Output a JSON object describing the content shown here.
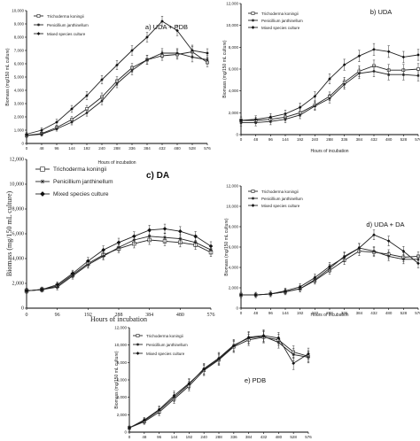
{
  "chart_data": [
    {
      "type": "line",
      "title": "a) UDA + PDB",
      "xlabel": "Hours of incubation",
      "ylabel": "Biomass (mg/150 mL culture)",
      "x_ticks": [
        "0",
        "48",
        "96",
        "144",
        "192",
        "240",
        "288",
        "336",
        "384",
        "432",
        "480",
        "528",
        "576"
      ],
      "y_ticks": [
        "0",
        "1,000",
        "2,000",
        "3,000",
        "4,000",
        "5,000",
        "6,000",
        "7,000",
        "8,000",
        "9,000",
        "10,000"
      ],
      "x": [
        0,
        48,
        96,
        144,
        192,
        240,
        288,
        336,
        384,
        432,
        480,
        528,
        576
      ],
      "ylim": [
        0,
        10000
      ],
      "legend": "top-left",
      "series": [
        {
          "name": "Trichoderma koningii",
          "marker": "square-open",
          "values": [
            600,
            750,
            1200,
            1800,
            2600,
            3500,
            4700,
            5700,
            6300,
            6600,
            6700,
            6900,
            6100
          ],
          "err": [
            150,
            150,
            180,
            220,
            260,
            300,
            320,
            320,
            330,
            340,
            360,
            420,
            320
          ]
        },
        {
          "name": "Penicillium janthinellum",
          "marker": "star",
          "values": [
            600,
            700,
            1100,
            1600,
            2300,
            3200,
            4500,
            5500,
            6300,
            6800,
            6800,
            6500,
            6300
          ],
          "err": [
            150,
            150,
            170,
            200,
            240,
            280,
            300,
            320,
            330,
            340,
            340,
            360,
            320
          ]
        },
        {
          "name": "Mixed species culture",
          "marker": "diamond-filled",
          "values": [
            700,
            1000,
            1600,
            2600,
            3600,
            4800,
            5900,
            7000,
            8000,
            9200,
            8500,
            7000,
            6800
          ],
          "err": [
            150,
            180,
            220,
            260,
            300,
            320,
            340,
            350,
            360,
            380,
            380,
            400,
            330
          ]
        }
      ]
    },
    {
      "type": "line",
      "title": "b) UDA",
      "xlabel": "Hours of incubation",
      "ylabel": "Biomass (mg/150 mL culture)",
      "x_ticks": [
        "0",
        "48",
        "96",
        "144",
        "192",
        "240",
        "288",
        "336",
        "384",
        "432",
        "480",
        "528",
        "576"
      ],
      "y_ticks": [
        "0",
        "2,000",
        "4,000",
        "6,000",
        "8,000",
        "10,000",
        "12,000"
      ],
      "x": [
        0,
        48,
        96,
        144,
        192,
        240,
        288,
        336,
        384,
        432,
        480,
        528,
        576
      ],
      "ylim": [
        0,
        12000
      ],
      "legend": "top-left",
      "series": [
        {
          "name": "Trichoderma koningii",
          "marker": "square-open",
          "values": [
            1300,
            1300,
            1400,
            1600,
            2000,
            2700,
            3500,
            4800,
            5800,
            6300,
            5900,
            5900,
            6000
          ],
          "err": [
            300,
            300,
            300,
            320,
            350,
            380,
            400,
            450,
            500,
            520,
            520,
            520,
            500
          ]
        },
        {
          "name": "Penicillium janthinellum",
          "marker": "star",
          "values": [
            1100,
            1100,
            1200,
            1400,
            1800,
            2600,
            3300,
            4600,
            5600,
            5800,
            5500,
            5500,
            5400
          ],
          "err": [
            300,
            300,
            300,
            320,
            340,
            380,
            400,
            440,
            480,
            500,
            500,
            500,
            480
          ]
        },
        {
          "name": "Mixed species culture",
          "marker": "diamond-filled",
          "values": [
            1300,
            1400,
            1600,
            1900,
            2500,
            3500,
            5100,
            6400,
            7200,
            7800,
            7600,
            7100,
            7300
          ],
          "err": [
            320,
            320,
            330,
            350,
            380,
            420,
            460,
            500,
            520,
            540,
            540,
            520,
            500
          ]
        }
      ]
    },
    {
      "type": "line",
      "title": "c) DA",
      "xlabel": "Hours of incubation",
      "ylabel": "Biomass (mg/150 mL culture)",
      "x_ticks": [
        "0",
        "96",
        "192",
        "288",
        "384",
        "480",
        "576"
      ],
      "y_ticks": [
        "0",
        "2,000",
        "4,000",
        "6,000",
        "8,000",
        "10,000",
        "12,000"
      ],
      "x": [
        0,
        48,
        96,
        144,
        192,
        240,
        288,
        336,
        384,
        432,
        480,
        528,
        576
      ],
      "ylim": [
        0,
        12000
      ],
      "legend": "top-left",
      "series": [
        {
          "name": "Trichoderma koningii",
          "marker": "square-open",
          "values": [
            1400,
            1500,
            1800,
            2700,
            3600,
            4300,
            4800,
            5200,
            5500,
            5400,
            5300,
            5100,
            4500
          ],
          "err": [
            200,
            200,
            220,
            250,
            280,
            300,
            320,
            340,
            360,
            360,
            360,
            360,
            340
          ]
        },
        {
          "name": "Penicillium janthinellum",
          "marker": "star",
          "values": [
            1400,
            1500,
            1700,
            2600,
            3500,
            4200,
            4900,
            5500,
            5800,
            5700,
            5600,
            5300,
            4700
          ],
          "err": [
            200,
            200,
            220,
            250,
            280,
            300,
            320,
            340,
            360,
            360,
            360,
            360,
            340
          ]
        },
        {
          "name": "Mixed species culture",
          "marker": "diamond-filled",
          "values": [
            1400,
            1500,
            1900,
            2800,
            3800,
            4700,
            5300,
            5800,
            6300,
            6400,
            6200,
            5800,
            5000
          ],
          "err": [
            200,
            200,
            220,
            260,
            290,
            320,
            340,
            360,
            380,
            380,
            380,
            380,
            360
          ]
        }
      ]
    },
    {
      "type": "line",
      "title": "d) UDA + DA",
      "xlabel": "Hours of incubation",
      "ylabel": "Biomass (mg/150 mL culture)",
      "x_ticks": [
        "0",
        "48",
        "96",
        "144",
        "192",
        "240",
        "288",
        "336",
        "384",
        "432",
        "480",
        "528",
        "576"
      ],
      "y_ticks": [
        "0",
        "2,000",
        "4,000",
        "6,000",
        "8,000",
        "10,000",
        "12,000"
      ],
      "x": [
        0,
        48,
        96,
        144,
        192,
        240,
        288,
        336,
        384,
        432,
        480,
        528,
        576
      ],
      "ylim": [
        0,
        12000
      ],
      "legend": "top-left",
      "series": [
        {
          "name": "Trichoderma koningii",
          "marker": "square-open",
          "values": [
            1300,
            1300,
            1400,
            1600,
            1900,
            2700,
            3700,
            4700,
            5600,
            5500,
            5300,
            5000,
            5100
          ],
          "err": [
            250,
            250,
            260,
            280,
            300,
            340,
            380,
            420,
            440,
            440,
            440,
            440,
            420
          ]
        },
        {
          "name": "Penicillium janthinellum",
          "marker": "star",
          "values": [
            1300,
            1300,
            1400,
            1600,
            1900,
            2800,
            3900,
            5100,
            5900,
            5600,
            5100,
            4800,
            4800
          ],
          "err": [
            250,
            250,
            260,
            280,
            300,
            340,
            380,
            420,
            440,
            440,
            440,
            440,
            420
          ]
        },
        {
          "name": "Mixed species culture",
          "marker": "diamond-filled",
          "values": [
            1300,
            1300,
            1400,
            1700,
            2100,
            3000,
            4100,
            5000,
            5900,
            7200,
            6600,
            5600,
            4400
          ],
          "err": [
            250,
            250,
            260,
            280,
            310,
            350,
            400,
            440,
            460,
            480,
            480,
            460,
            440
          ]
        }
      ]
    },
    {
      "type": "line",
      "title": "e) PDB",
      "xlabel": "",
      "ylabel": "Biomass (mg/150 mL culture)",
      "x_ticks": [
        "0",
        "48",
        "96",
        "144",
        "192",
        "240",
        "288",
        "336",
        "384",
        "432",
        "480",
        "528",
        "576"
      ],
      "y_ticks": [
        "0",
        "2,000",
        "4,000",
        "6,000",
        "8,000",
        "10,000",
        "12,000"
      ],
      "x": [
        0,
        48,
        96,
        144,
        192,
        240,
        288,
        336,
        384,
        432,
        480,
        528,
        576
      ],
      "ylim": [
        0,
        12000
      ],
      "legend": "top-left",
      "series": [
        {
          "name": "Trichoderma koningii",
          "marker": "square-open",
          "values": [
            500,
            1200,
            2300,
            3800,
            5300,
            7100,
            8300,
            9800,
            10600,
            10900,
            10600,
            9200,
            8700
          ],
          "err": [
            200,
            300,
            400,
            500,
            550,
            600,
            650,
            650,
            650,
            650,
            650,
            700,
            650
          ]
        },
        {
          "name": "Penicillium janthinellum",
          "marker": "star",
          "values": [
            500,
            1300,
            2500,
            4000,
            5500,
            7300,
            8500,
            10000,
            10800,
            11000,
            10300,
            8900,
            8600
          ],
          "err": [
            200,
            300,
            400,
            500,
            550,
            600,
            650,
            650,
            650,
            650,
            650,
            700,
            650
          ]
        },
        {
          "name": "Mixed species culture",
          "marker": "diamond-filled",
          "values": [
            500,
            1400,
            2600,
            4200,
            5600,
            7200,
            8400,
            9900,
            10900,
            11100,
            10800,
            7900,
            9000
          ],
          "err": [
            200,
            300,
            400,
            500,
            550,
            600,
            650,
            650,
            650,
            650,
            650,
            700,
            650
          ]
        }
      ]
    }
  ]
}
